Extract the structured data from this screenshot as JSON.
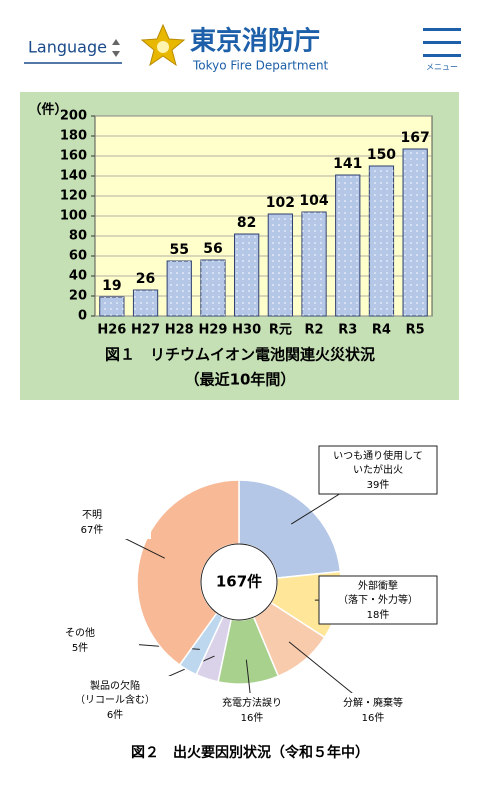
{
  "header": {
    "language": "Language",
    "logo_title": "東京消防庁",
    "logo_subtitle": "Tokyo Fire Department",
    "menu": "メニュー"
  },
  "chart_data": [
    {
      "type": "bar",
      "title": "図１　リチウムイオン電池関連火災状況",
      "subtitle": "（最近10年間）",
      "y_label": "（件）",
      "categories": [
        "H26",
        "H27",
        "H28",
        "H29",
        "H30",
        "R元",
        "R2",
        "R3",
        "R4",
        "R5"
      ],
      "values": [
        19,
        26,
        55,
        56,
        82,
        102,
        104,
        141,
        150,
        167
      ],
      "color": "#b4c7e7",
      "ylim": [
        0,
        200
      ],
      "yticks": [
        0,
        20,
        40,
        60,
        80,
        100,
        120,
        140,
        160,
        180,
        200
      ],
      "grid": true
    },
    {
      "type": "pie",
      "title": "図２　出火要因別状況（令和５年中）",
      "center_label": "167件",
      "categories": [
        "いつも通り使用して\nいたが出火",
        "外部衝撃\n（落下・外力等）",
        "分解・廃棄等",
        "充電方法誤り",
        "製品の欠陥\n（リコール含む）",
        "その他",
        "不明"
      ],
      "values": [
        39,
        18,
        16,
        16,
        6,
        5,
        67
      ],
      "value_labels": [
        "39件",
        "18件",
        "16件",
        "16件",
        "6件",
        "5件",
        "67件"
      ],
      "colors": [
        "#b4c7e7",
        "#ffe699",
        "#f8cbad",
        "#a9d18e",
        "#d9d2e9",
        "#bdd7ee",
        "#f8b996"
      ]
    }
  ]
}
